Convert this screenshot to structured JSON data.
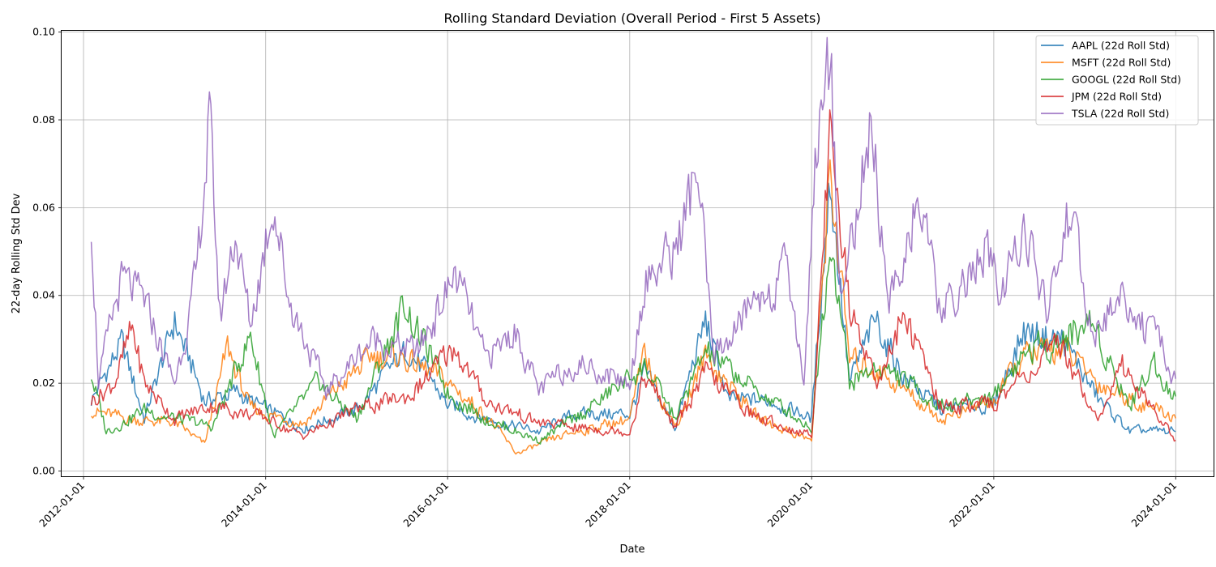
{
  "chart_data": {
    "type": "line",
    "title": "Rolling Standard Deviation (Overall Period - First 5 Assets)",
    "xlabel": "Date",
    "ylabel": "22-day Rolling Std Dev",
    "xlim": [
      "2011-10-05",
      "2024-06-01"
    ],
    "ylim": [
      -0.0012,
      0.1003
    ],
    "grid": true,
    "legend_position": "top-right",
    "x_ticks": [
      "2012-01-01",
      "2014-01-01",
      "2016-01-01",
      "2018-01-01",
      "2020-01-01",
      "2022-01-01",
      "2024-01-01"
    ],
    "y_ticks": [
      "0.00",
      "0.02",
      "0.04",
      "0.06",
      "0.08",
      "0.10"
    ],
    "series": [
      {
        "name": "AAPL (22d Roll Std)",
        "color": "#1f77b4",
        "points": [
          [
            "2012-02-01",
            0.016
          ],
          [
            "2012-06-01",
            0.029
          ],
          [
            "2012-09-01",
            0.012
          ],
          [
            "2013-01-01",
            0.034
          ],
          [
            "2013-05-01",
            0.016
          ],
          [
            "2013-09-01",
            0.018
          ],
          [
            "2014-01-01",
            0.014
          ],
          [
            "2014-06-01",
            0.01
          ],
          [
            "2015-01-01",
            0.014
          ],
          [
            "2015-08-01",
            0.028
          ],
          [
            "2016-01-01",
            0.015
          ],
          [
            "2016-06-01",
            0.012
          ],
          [
            "2017-01-01",
            0.009
          ],
          [
            "2017-06-01",
            0.013
          ],
          [
            "2018-01-01",
            0.013
          ],
          [
            "2018-03-01",
            0.022
          ],
          [
            "2018-07-01",
            0.01
          ],
          [
            "2018-11-01",
            0.034
          ],
          [
            "2019-02-01",
            0.016
          ],
          [
            "2019-08-01",
            0.016
          ],
          [
            "2020-01-01",
            0.012
          ],
          [
            "2020-03-15",
            0.068
          ],
          [
            "2020-06-01",
            0.02
          ],
          [
            "2020-09-15",
            0.034
          ],
          [
            "2021-01-01",
            0.022
          ],
          [
            "2021-06-01",
            0.014
          ],
          [
            "2022-01-01",
            0.015
          ],
          [
            "2022-05-01",
            0.032
          ],
          [
            "2022-10-01",
            0.03
          ],
          [
            "2023-03-01",
            0.016
          ],
          [
            "2023-07-01",
            0.009
          ],
          [
            "2024-01-01",
            0.009
          ]
        ]
      },
      {
        "name": "MSFT (22d Roll Std)",
        "color": "#ff7f0e",
        "points": [
          [
            "2012-02-01",
            0.014
          ],
          [
            "2012-06-01",
            0.012
          ],
          [
            "2013-01-01",
            0.011
          ],
          [
            "2013-05-01",
            0.006
          ],
          [
            "2013-08-01",
            0.028
          ],
          [
            "2013-11-01",
            0.014
          ],
          [
            "2014-06-01",
            0.011
          ],
          [
            "2015-03-01",
            0.026
          ],
          [
            "2015-07-01",
            0.026
          ],
          [
            "2016-01-01",
            0.02
          ],
          [
            "2016-06-01",
            0.013
          ],
          [
            "2016-10-01",
            0.004
          ],
          [
            "2017-06-01",
            0.009
          ],
          [
            "2018-01-01",
            0.012
          ],
          [
            "2018-03-01",
            0.026
          ],
          [
            "2018-07-01",
            0.01
          ],
          [
            "2018-11-01",
            0.026
          ],
          [
            "2019-06-01",
            0.012
          ],
          [
            "2020-01-01",
            0.007
          ],
          [
            "2020-03-15",
            0.069
          ],
          [
            "2020-06-01",
            0.025
          ],
          [
            "2020-10-01",
            0.023
          ],
          [
            "2021-06-01",
            0.012
          ],
          [
            "2022-01-01",
            0.016
          ],
          [
            "2022-05-01",
            0.026
          ],
          [
            "2022-10-01",
            0.028
          ],
          [
            "2023-03-01",
            0.02
          ],
          [
            "2024-01-01",
            0.012
          ]
        ]
      },
      {
        "name": "GOOGL (22d Roll Std)",
        "color": "#2ca02c",
        "points": [
          [
            "2012-02-01",
            0.022
          ],
          [
            "2012-04-01",
            0.009
          ],
          [
            "2012-09-01",
            0.014
          ],
          [
            "2013-01-01",
            0.012
          ],
          [
            "2013-06-01",
            0.01
          ],
          [
            "2013-11-01",
            0.031
          ],
          [
            "2014-02-01",
            0.008
          ],
          [
            "2014-08-01",
            0.02
          ],
          [
            "2015-01-01",
            0.012
          ],
          [
            "2015-07-15",
            0.038
          ],
          [
            "2016-01-01",
            0.018
          ],
          [
            "2016-06-01",
            0.012
          ],
          [
            "2017-01-01",
            0.007
          ],
          [
            "2017-06-01",
            0.012
          ],
          [
            "2018-03-01",
            0.024
          ],
          [
            "2018-07-01",
            0.012
          ],
          [
            "2018-11-01",
            0.027
          ],
          [
            "2019-06-01",
            0.018
          ],
          [
            "2020-01-01",
            0.01
          ],
          [
            "2020-03-20",
            0.055
          ],
          [
            "2020-06-01",
            0.02
          ],
          [
            "2020-10-01",
            0.024
          ],
          [
            "2021-06-01",
            0.015
          ],
          [
            "2022-01-01",
            0.017
          ],
          [
            "2022-05-01",
            0.027
          ],
          [
            "2022-10-01",
            0.03
          ],
          [
            "2023-02-01",
            0.034
          ],
          [
            "2023-07-01",
            0.015
          ],
          [
            "2023-10-01",
            0.025
          ],
          [
            "2024-01-01",
            0.017
          ]
        ]
      },
      {
        "name": "JPM (22d Roll Std)",
        "color": "#d62728",
        "points": [
          [
            "2012-02-01",
            0.016
          ],
          [
            "2012-05-01",
            0.02
          ],
          [
            "2012-07-15",
            0.032
          ],
          [
            "2012-09-01",
            0.02
          ],
          [
            "2013-01-01",
            0.012
          ],
          [
            "2013-06-01",
            0.015
          ],
          [
            "2014-01-01",
            0.012
          ],
          [
            "2014-06-01",
            0.008
          ],
          [
            "2015-01-01",
            0.014
          ],
          [
            "2015-08-01",
            0.017
          ],
          [
            "2016-02-01",
            0.028
          ],
          [
            "2016-06-01",
            0.016
          ],
          [
            "2017-01-01",
            0.011
          ],
          [
            "2017-06-01",
            0.01
          ],
          [
            "2018-01-01",
            0.009
          ],
          [
            "2018-03-01",
            0.022
          ],
          [
            "2018-07-01",
            0.01
          ],
          [
            "2018-11-01",
            0.022
          ],
          [
            "2019-06-01",
            0.012
          ],
          [
            "2020-01-01",
            0.008
          ],
          [
            "2020-03-20",
            0.083
          ],
          [
            "2020-06-01",
            0.037
          ],
          [
            "2020-10-01",
            0.02
          ],
          [
            "2021-01-01",
            0.036
          ],
          [
            "2021-06-01",
            0.015
          ],
          [
            "2022-01-01",
            0.015
          ],
          [
            "2022-05-01",
            0.022
          ],
          [
            "2022-10-01",
            0.028
          ],
          [
            "2023-03-01",
            0.012
          ],
          [
            "2023-06-01",
            0.024
          ],
          [
            "2024-01-01",
            0.007
          ]
        ]
      },
      {
        "name": "TSLA (22d Roll Std)",
        "color": "#9467bd",
        "points": [
          [
            "2012-02-01",
            0.058
          ],
          [
            "2012-03-01",
            0.021
          ],
          [
            "2012-06-01",
            0.043
          ],
          [
            "2012-09-01",
            0.038
          ],
          [
            "2013-01-01",
            0.02
          ],
          [
            "2013-04-01",
            0.045
          ],
          [
            "2013-05-20",
            0.08
          ],
          [
            "2013-07-01",
            0.035
          ],
          [
            "2013-09-01",
            0.055
          ],
          [
            "2013-11-01",
            0.033
          ],
          [
            "2014-02-01",
            0.063
          ],
          [
            "2014-04-01",
            0.04
          ],
          [
            "2014-09-01",
            0.018
          ],
          [
            "2015-03-01",
            0.03
          ],
          [
            "2015-09-01",
            0.027
          ],
          [
            "2016-02-01",
            0.045
          ],
          [
            "2016-06-01",
            0.025
          ],
          [
            "2016-10-01",
            0.032
          ],
          [
            "2017-01-01",
            0.018
          ],
          [
            "2017-06-01",
            0.025
          ],
          [
            "2018-01-01",
            0.02
          ],
          [
            "2018-03-01",
            0.044
          ],
          [
            "2018-07-01",
            0.05
          ],
          [
            "2018-10-01",
            0.068
          ],
          [
            "2018-12-01",
            0.025
          ],
          [
            "2019-06-01",
            0.04
          ],
          [
            "2019-10-01",
            0.045
          ],
          [
            "2019-12-01",
            0.02
          ],
          [
            "2020-01-15",
            0.072
          ],
          [
            "2020-03-15",
            0.095
          ],
          [
            "2020-05-01",
            0.04
          ],
          [
            "2020-09-01",
            0.08
          ],
          [
            "2020-11-01",
            0.035
          ],
          [
            "2021-03-01",
            0.063
          ],
          [
            "2021-06-01",
            0.035
          ],
          [
            "2021-12-01",
            0.05
          ],
          [
            "2022-02-01",
            0.038
          ],
          [
            "2022-05-01",
            0.058
          ],
          [
            "2022-08-01",
            0.035
          ],
          [
            "2022-11-01",
            0.06
          ],
          [
            "2023-02-01",
            0.03
          ],
          [
            "2023-06-01",
            0.04
          ],
          [
            "2023-10-01",
            0.03
          ],
          [
            "2024-01-01",
            0.021
          ]
        ]
      }
    ]
  }
}
